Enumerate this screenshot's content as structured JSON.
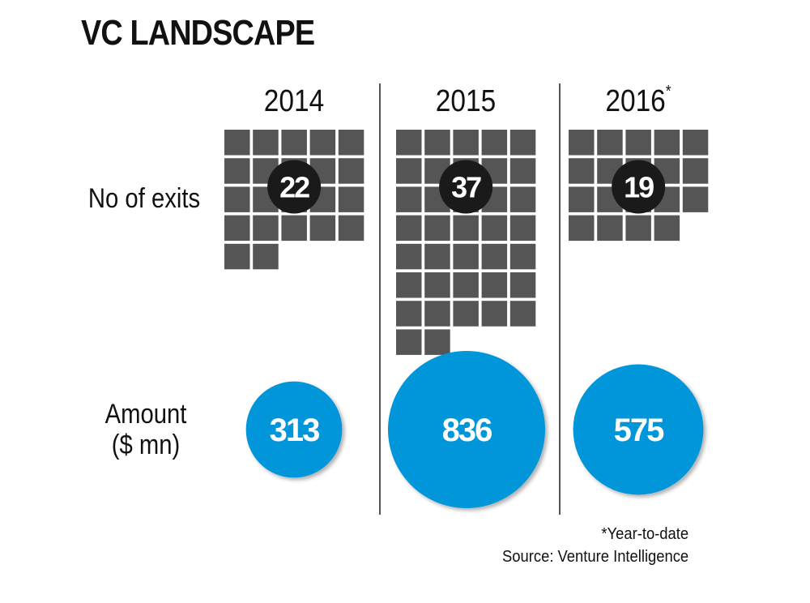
{
  "chart_data": {
    "type": "table",
    "title": "VC LANDSCAPE",
    "categories": [
      "2014",
      "2015",
      "2016"
    ],
    "category_notes": [
      "",
      "",
      "*"
    ],
    "series": [
      {
        "name": "No of exits",
        "values": [
          22,
          37,
          19
        ],
        "mark": "unit-squares",
        "color": "#555555",
        "badge_color": "#1a1a1a"
      },
      {
        "name": "Amount ($ mn)",
        "values": [
          313,
          836,
          575
        ],
        "mark": "proportional-circles",
        "color": "#0096d9"
      }
    ],
    "units_per_row": 5,
    "footnote": "*Year-to-date",
    "source": "Source: Venture Intelligence"
  },
  "labels": {
    "title": "VC LANDSCAPE",
    "row_exits": "No of exits",
    "row_amount_line1": "Amount",
    "row_amount_line2": "($ mn)",
    "years": [
      "2014",
      "2015",
      "2016"
    ],
    "year_marker": "*",
    "footnote": "*Year-to-date",
    "source": "Source: Venture Intelligence"
  }
}
